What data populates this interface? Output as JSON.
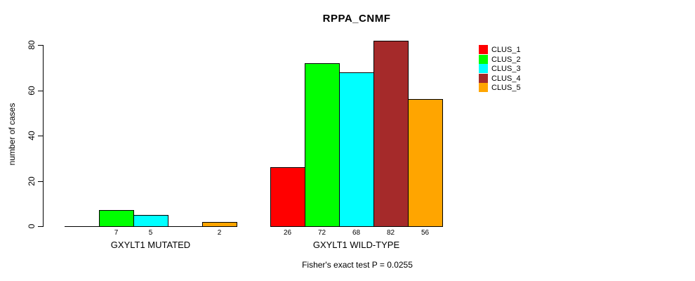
{
  "chart_data": {
    "type": "bar",
    "title": "RPPA_CNMF",
    "xlabel": "",
    "ylabel": "number of cases",
    "ylim": [
      0,
      80
    ],
    "yticks": [
      0,
      20,
      40,
      60,
      80
    ],
    "grid": false,
    "legend_position": "right",
    "groups": [
      "GXYLT1 MUTATED",
      "GXYLT1 WILD-TYPE"
    ],
    "series": [
      {
        "name": "CLUS_1",
        "color": "#ff0000",
        "values": [
          0,
          26
        ]
      },
      {
        "name": "CLUS_2",
        "color": "#00ff00",
        "values": [
          7,
          72
        ]
      },
      {
        "name": "CLUS_3",
        "color": "#00ffff",
        "values": [
          5,
          68
        ]
      },
      {
        "name": "CLUS_4",
        "color": "#a52a2a",
        "values": [
          0,
          82
        ]
      },
      {
        "name": "CLUS_5",
        "color": "#ffa500",
        "values": [
          2,
          56
        ]
      }
    ],
    "bar_value_labels": {
      "GXYLT1 MUTATED": [
        null,
        7,
        5,
        null,
        2
      ],
      "GXYLT1 WILD-TYPE": [
        26,
        72,
        68,
        82,
        56
      ]
    },
    "annotation": "Fisher's exact test P = 0.0255"
  },
  "colors": {
    "background": "#ffffff",
    "axis": "#000000",
    "text": "#000000"
  }
}
